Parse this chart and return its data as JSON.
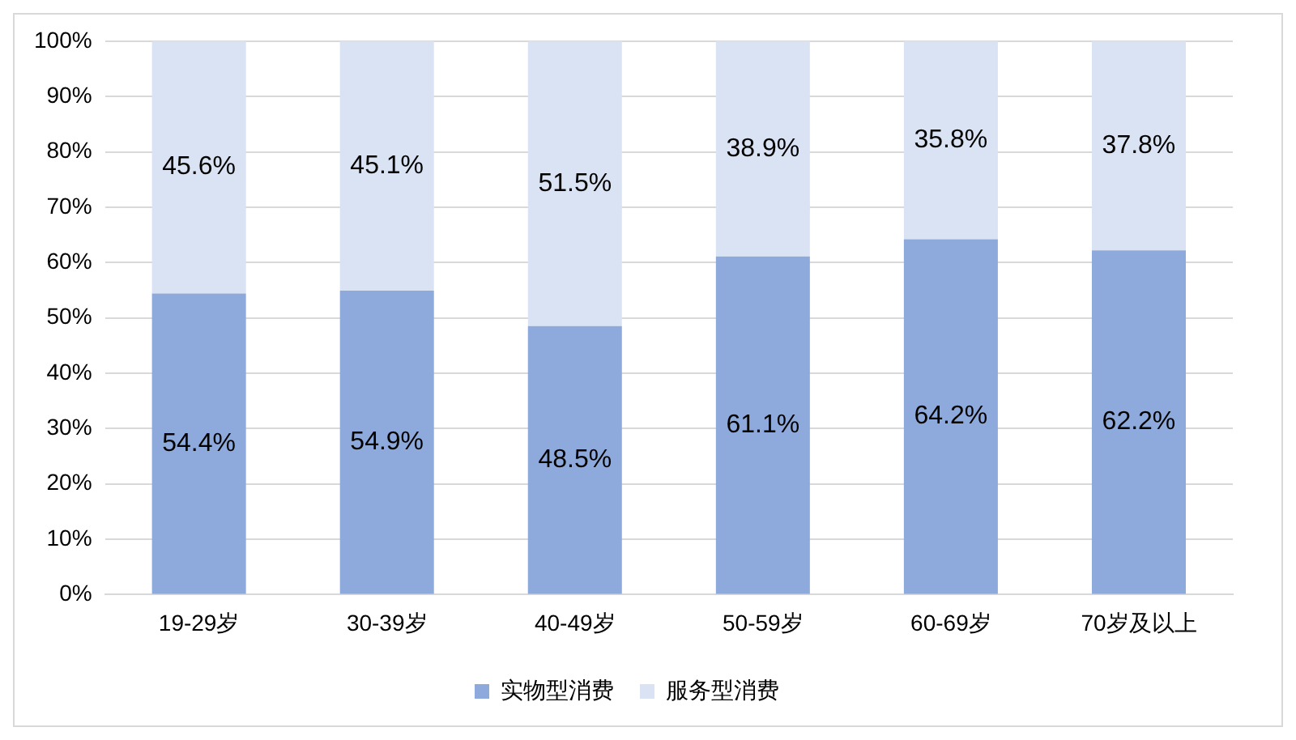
{
  "chart_data": {
    "type": "bar",
    "stacked": true,
    "categories": [
      "19-29岁",
      "30-39岁",
      "40-49岁",
      "50-59岁",
      "60-69岁",
      "70岁及以上"
    ],
    "series": [
      {
        "name": "实物型消费",
        "color": "#8eaadc",
        "values": [
          54.4,
          54.9,
          48.5,
          61.1,
          64.2,
          62.2
        ],
        "value_labels": [
          "54.4%",
          "54.9%",
          "48.5%",
          "61.1%",
          "64.2%",
          "62.2%"
        ]
      },
      {
        "name": "服务型消费",
        "color": "#dae3f3",
        "values": [
          45.6,
          45.1,
          51.5,
          38.9,
          35.8,
          37.8
        ],
        "value_labels": [
          "45.6%",
          "45.1%",
          "51.5%",
          "38.9%",
          "35.8%",
          "37.8%"
        ]
      }
    ],
    "ylim": [
      0,
      100
    ],
    "yticks": [
      {
        "value": 0,
        "label": "0%"
      },
      {
        "value": 10,
        "label": "10%"
      },
      {
        "value": 20,
        "label": "20%"
      },
      {
        "value": 30,
        "label": "30%"
      },
      {
        "value": 40,
        "label": "40%"
      },
      {
        "value": 50,
        "label": "50%"
      },
      {
        "value": 60,
        "label": "60%"
      },
      {
        "value": 70,
        "label": "70%"
      },
      {
        "value": 80,
        "label": "80%"
      },
      {
        "value": 90,
        "label": "90%"
      },
      {
        "value": 100,
        "label": "100%"
      }
    ],
    "grid": "y",
    "legend": "bottom"
  }
}
